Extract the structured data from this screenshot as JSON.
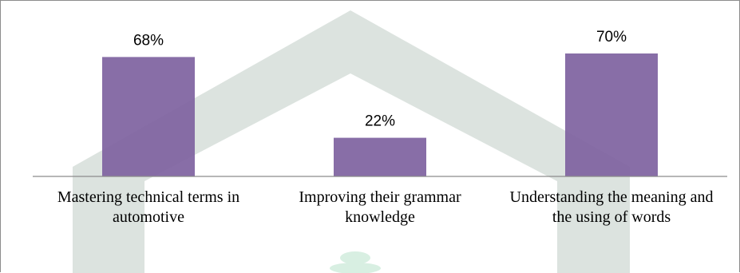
{
  "chart_data": {
    "type": "bar",
    "categories": [
      "Mastering technical terms in automotive",
      "Improving their grammar knowledge",
      "Understanding the meaning and the using of words"
    ],
    "values": [
      68,
      22,
      70
    ],
    "data_labels": [
      "68%",
      "22%",
      "70%"
    ],
    "title": "",
    "xlabel": "",
    "ylabel": "",
    "ylim": [
      0,
      100
    ],
    "grid": false,
    "legend": "none",
    "bar_color": "#7e62a0",
    "watermark_color": "#dce3df"
  }
}
